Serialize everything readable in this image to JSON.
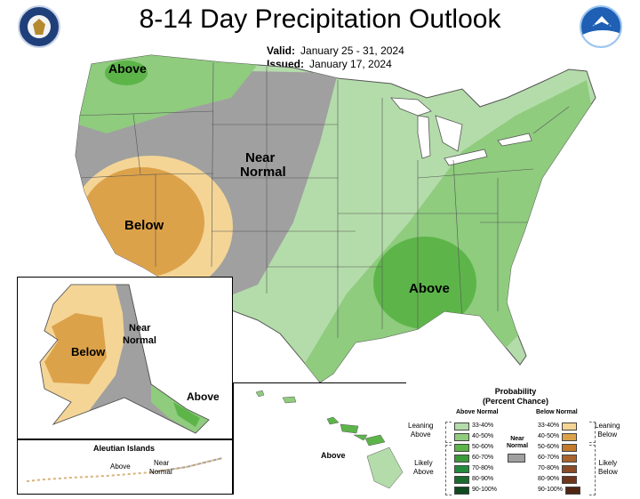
{
  "title": "8-14 Day Precipitation Outlook",
  "valid": {
    "label": "Valid:",
    "value": "January 25 - 31, 2024"
  },
  "issued": {
    "label": "Issued:",
    "value": "January 17, 2024"
  },
  "map_labels": {
    "above_nw": "Above",
    "near_normal_line1": "Near",
    "near_normal_line2": "Normal",
    "below_sw": "Below",
    "above_se": "Above",
    "ak_below": "Below",
    "ak_near_line1": "Near",
    "ak_near_line2": "Normal",
    "ak_above": "Above",
    "aleutian_title": "Aleutian Islands",
    "aleutian_above": "Above",
    "aleutian_near_line1": "Near",
    "aleutian_near_line2": "Normal",
    "hawaii_above": "Above"
  },
  "colors": {
    "above_33_40": "#b4dcaa",
    "above_40_50": "#8fcc7e",
    "above_50_60": "#5db54a",
    "above_60_70": "#3a9a3a",
    "above_70_80": "#228b3b",
    "above_80_90": "#1a6b2e",
    "above_90_100": "#0f4a20",
    "below_33_40": "#f4d596",
    "below_40_50": "#dca24a",
    "below_50_60": "#c37a2b",
    "below_60_70": "#a8642e",
    "below_70_80": "#8a4b26",
    "below_80_90": "#6e371d",
    "below_90_100": "#4f2613",
    "near_normal": "#a0a0a0",
    "state_lines": "#555555"
  },
  "legend": {
    "title_line1": "Probability",
    "title_line2": "(Percent Chance)",
    "above_header": "Above Normal",
    "below_header": "Below Normal",
    "near_line1": "Near",
    "near_line2": "Normal",
    "leaning_above_1": "Leaning",
    "leaning_above_2": "Above",
    "likely_above_1": "Likely",
    "likely_above_2": "Above",
    "leaning_below_1": "Leaning",
    "leaning_below_2": "Below",
    "likely_below_1": "Likely",
    "likely_below_2": "Below",
    "ranges": [
      "33-40%",
      "40-50%",
      "50-60%",
      "60-70%",
      "70-80%",
      "80-90%",
      "90-100%"
    ]
  },
  "logos": {
    "left": "department-of-commerce-seal",
    "right": "noaa-logo",
    "noaa_text": "NOAA"
  }
}
